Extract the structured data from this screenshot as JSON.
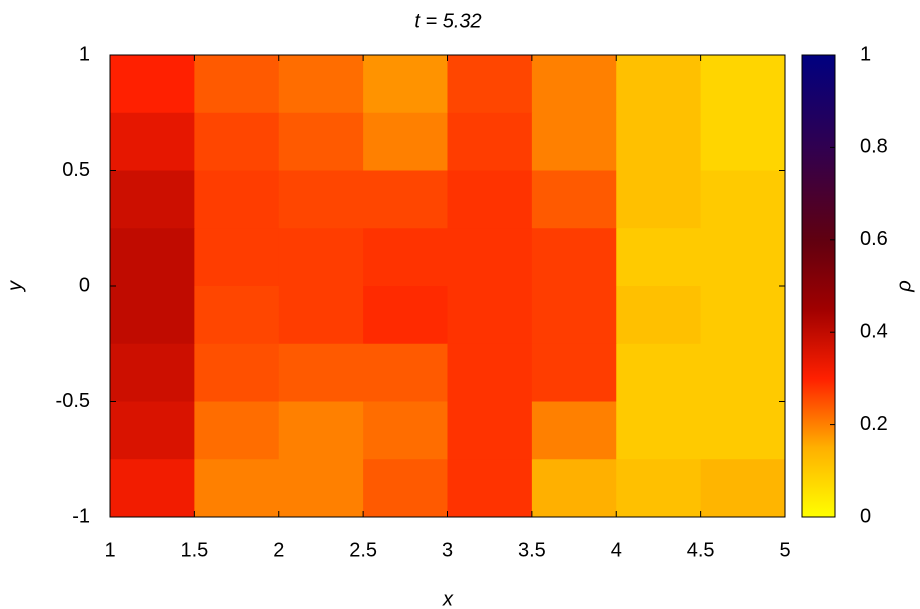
{
  "chart_data": {
    "type": "heatmap",
    "title": "t = 5.32",
    "xlabel": "x",
    "ylabel": "y",
    "colorbar_label": "ρ",
    "xbins": [
      1,
      1.5,
      2,
      2.5,
      3,
      3.5,
      4,
      4.5,
      5
    ],
    "ybins": [
      1,
      0.75,
      0.5,
      0.25,
      0,
      -0.25,
      -0.5,
      -0.75,
      -1
    ],
    "z": [
      [
        0.3,
        0.24,
        0.22,
        0.18,
        0.26,
        0.2,
        0.12,
        0.08
      ],
      [
        0.34,
        0.26,
        0.24,
        0.2,
        0.27,
        0.2,
        0.12,
        0.08
      ],
      [
        0.38,
        0.27,
        0.26,
        0.26,
        0.28,
        0.24,
        0.12,
        0.1
      ],
      [
        0.4,
        0.27,
        0.27,
        0.28,
        0.28,
        0.27,
        0.1,
        0.1
      ],
      [
        0.4,
        0.26,
        0.27,
        0.29,
        0.28,
        0.27,
        0.12,
        0.1
      ],
      [
        0.38,
        0.25,
        0.24,
        0.24,
        0.28,
        0.27,
        0.1,
        0.1
      ],
      [
        0.36,
        0.22,
        0.2,
        0.22,
        0.28,
        0.2,
        0.1,
        0.1
      ],
      [
        0.32,
        0.2,
        0.2,
        0.24,
        0.28,
        0.15,
        0.12,
        0.14
      ]
    ],
    "xlim": [
      1,
      5
    ],
    "ylim": [
      -1,
      1
    ],
    "xticks": [
      1,
      1.5,
      2,
      2.5,
      3,
      3.5,
      4,
      4.5,
      5
    ],
    "yticks": [
      -1,
      -0.5,
      0,
      0.5,
      1
    ],
    "clim": [
      0,
      1
    ],
    "cticks": [
      0,
      0.2,
      0.4,
      0.6,
      0.8,
      1
    ],
    "colormap": [
      {
        "value": 0,
        "color": "#ffff00"
      },
      {
        "value": 0.15,
        "color": "#ffb000"
      },
      {
        "value": 0.3,
        "color": "#ff2000"
      },
      {
        "value": 0.45,
        "color": "#a00000"
      },
      {
        "value": 0.6,
        "color": "#600010"
      },
      {
        "value": 0.8,
        "color": "#300050"
      },
      {
        "value": 1,
        "color": "#000080"
      }
    ]
  }
}
